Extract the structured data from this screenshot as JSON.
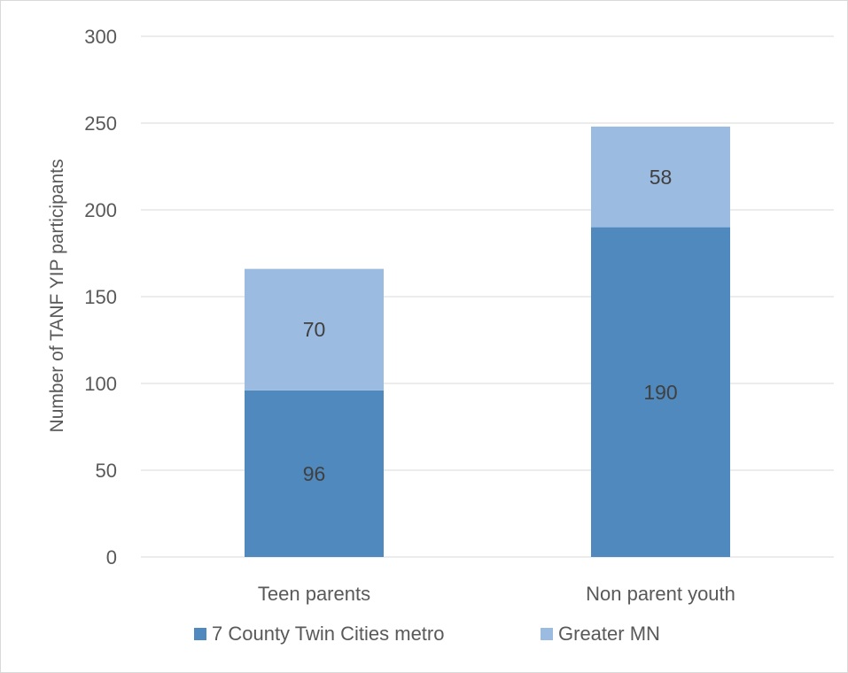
{
  "chart_data": {
    "type": "bar",
    "stacked": true,
    "categories": [
      "Teen parents",
      "Non parent youth"
    ],
    "series": [
      {
        "name": "7 County Twin Cities metro",
        "values": [
          96,
          190
        ],
        "color": "#4f89bd"
      },
      {
        "name": "Greater MN",
        "values": [
          70,
          58
        ],
        "color": "#9bbbe0"
      }
    ],
    "title": "",
    "xlabel": "",
    "ylabel": "Number of TANF YIP participants",
    "ylim": [
      0,
      300
    ],
    "yticks": [
      0,
      50,
      100,
      150,
      200,
      250,
      300
    ],
    "grid": true,
    "legend_position": "bottom"
  }
}
